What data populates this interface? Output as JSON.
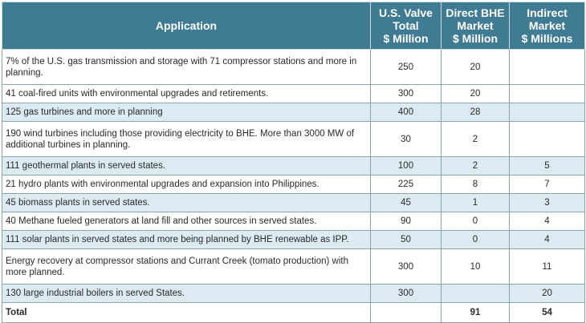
{
  "table": {
    "headers": {
      "application": "Application",
      "us_valve_total": [
        "U.S. Valve",
        "Total",
        "$ Million"
      ],
      "direct_bhe": [
        "Direct BHE",
        "Market",
        "$ Million"
      ],
      "indirect": [
        "Indirect",
        "Market",
        "$ Millions"
      ]
    },
    "rows": [
      {
        "application": "7% of the U.S. gas transmission and storage with 71 compressor stations and more in planning.",
        "us_valve_total": "250",
        "direct_bhe": "20",
        "indirect": ""
      },
      {
        "application": "41 coal-fired units with environmental upgrades and retirements.",
        "us_valve_total": "300",
        "direct_bhe": "20",
        "indirect": ""
      },
      {
        "application": "125 gas turbines and more in planning",
        "us_valve_total": "400",
        "direct_bhe": "28",
        "indirect": ""
      },
      {
        "application": "190 wind turbines including those providing electricity to BHE. More than 3000 MW of additional turbines in planning.",
        "us_valve_total": "30",
        "direct_bhe": "2",
        "indirect": ""
      },
      {
        "application": "111 geothermal plants in served states.",
        "us_valve_total": "100",
        "direct_bhe": "2",
        "indirect": "5"
      },
      {
        "application": "21 hydro plants with environmental upgrades and expansion into Philippines.",
        "us_valve_total": "225",
        "direct_bhe": "8",
        "indirect": "7"
      },
      {
        "application": "45 biomass plants in served states.",
        "us_valve_total": "45",
        "direct_bhe": "1",
        "indirect": "3"
      },
      {
        "application": "40 Methane fueled generators at land fill and other sources in served states.",
        "us_valve_total": "90",
        "direct_bhe": "0",
        "indirect": "4"
      },
      {
        "application": "111 solar plants in served states and more being planned by BHE renewable as IPP.",
        "us_valve_total": "50",
        "direct_bhe": "0",
        "indirect": "4"
      },
      {
        "application": "Energy recovery at compressor stations and Currant Creek (tomato production) with more planned.",
        "us_valve_total": "300",
        "direct_bhe": "10",
        "indirect": "11"
      },
      {
        "application": "130 large industrial boilers in served States.",
        "us_valve_total": "300",
        "direct_bhe": "",
        "indirect": "20"
      }
    ],
    "total": {
      "label": "Total",
      "us_valve_total": "",
      "direct_bhe": "91",
      "indirect": "54"
    }
  },
  "colors": {
    "header_bg": "#3f7b93",
    "header_text": "#ffffff",
    "alt_row_bg": "#dcebf1",
    "border": "#8aa4ae"
  }
}
